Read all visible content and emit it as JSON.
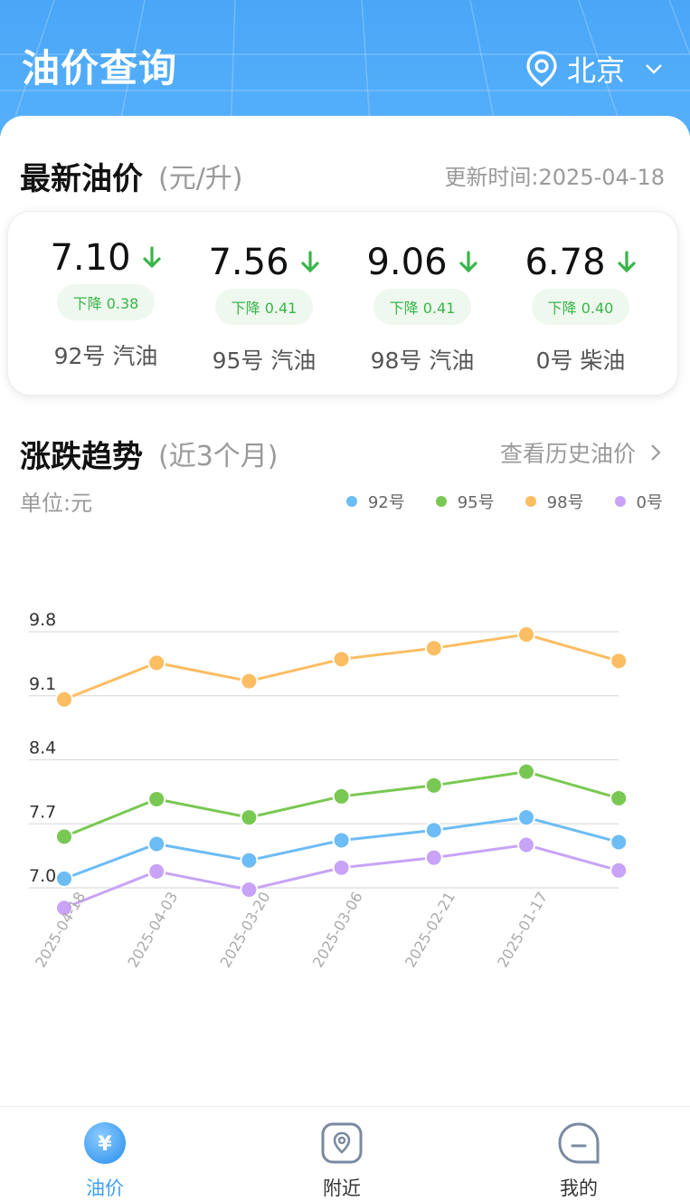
{
  "header": {
    "title": "油价查询",
    "city": "北京"
  },
  "latest": {
    "title": "最新油价",
    "unit": "(元/升)",
    "update_time": "更新时间:2025-04-18",
    "prices": [
      {
        "value": "7.10",
        "change": "下降 0.38",
        "name": "92号 汽油"
      },
      {
        "value": "7.56",
        "change": "下降 0.41",
        "name": "95号 汽油"
      },
      {
        "value": "9.06",
        "change": "下降 0.41",
        "name": "98号 汽油"
      },
      {
        "value": "6.78",
        "change": "下降 0.40",
        "name": "0号 柴油"
      }
    ]
  },
  "trend": {
    "title": "涨跌趋势",
    "sub": "(近3个月)",
    "history_link": "查看历史油价",
    "unit_label": "单位:元"
  },
  "chart_data": {
    "type": "line",
    "x": [
      "2025-04-18",
      "2025-04-03",
      "2025-03-20",
      "2025-03-06",
      "2025-02-21",
      "2025-01-17",
      ""
    ],
    "y_ticks": [
      9.8,
      9.1,
      8.4,
      7.7,
      7.0
    ],
    "ylim": [
      7.0,
      9.8
    ],
    "legend_placement": "top-right",
    "grid": true,
    "series": [
      {
        "name": "92号",
        "color": "#6cbcf5",
        "values": [
          7.1,
          7.48,
          7.3,
          7.52,
          7.63,
          7.77,
          7.5
        ]
      },
      {
        "name": "95号",
        "color": "#79c853",
        "values": [
          7.56,
          7.97,
          7.77,
          8.0,
          8.12,
          8.27,
          7.98
        ]
      },
      {
        "name": "98号",
        "color": "#fdbd62",
        "values": [
          9.06,
          9.46,
          9.26,
          9.5,
          9.62,
          9.77,
          9.48
        ]
      },
      {
        "name": "0号",
        "color": "#c8a3f7",
        "values": [
          6.78,
          7.18,
          6.98,
          7.22,
          7.33,
          7.47,
          7.19
        ]
      }
    ]
  },
  "tabs": [
    {
      "label": "油价",
      "active": true
    },
    {
      "label": "附近",
      "active": false
    },
    {
      "label": "我的",
      "active": false
    }
  ],
  "colors": {
    "brand": "#4aa6f7",
    "down": "#3ab54a",
    "badge_bg": "#eef8ee"
  }
}
